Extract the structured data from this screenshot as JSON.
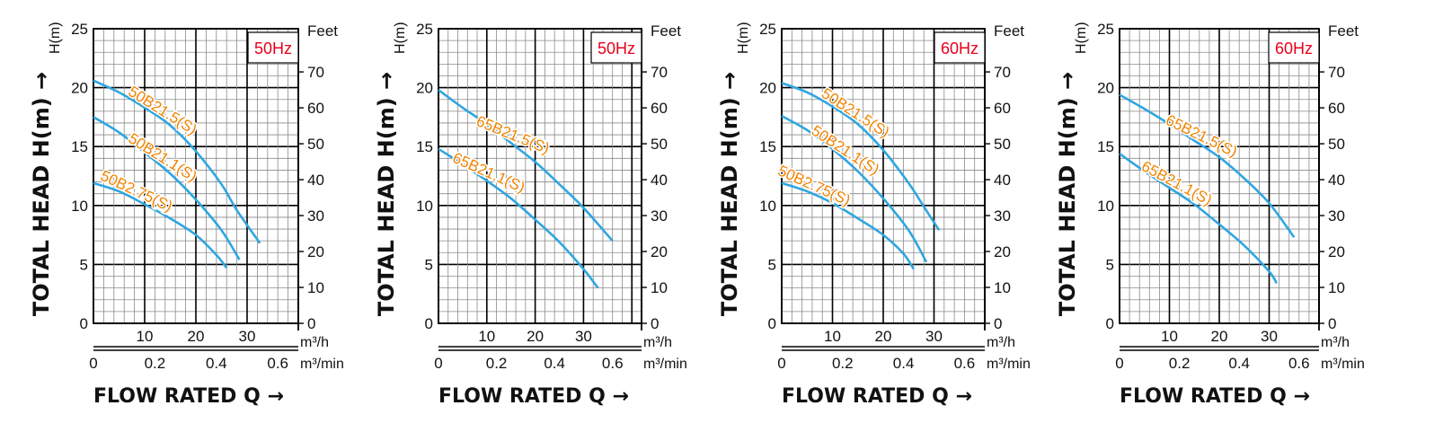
{
  "chart_data": [
    {
      "type": "line",
      "frequency": "50Hz",
      "y_title": "TOTAL HEAD H(m) →",
      "y_unit": "H(m)",
      "y2_unit": "Feet",
      "x_title": "FLOW RATED Q →",
      "x_unit_1": "m³/h",
      "x_unit_2": "m³/min",
      "xlim": [
        0,
        40
      ],
      "ylim": [
        0,
        25
      ],
      "x_ticks": [
        "10",
        "20",
        "30"
      ],
      "x2_ticks": [
        "0",
        "0.2",
        "0.4",
        "0.6"
      ],
      "y_ticks": [
        "0",
        "5",
        "10",
        "15",
        "20",
        "25"
      ],
      "y2_ticks": [
        "0",
        "10",
        "20",
        "30",
        "40",
        "50",
        "60",
        "70"
      ],
      "series": [
        {
          "name": "50B21.5(S)",
          "x": [
            0,
            5,
            10,
            15,
            20,
            25,
            28,
            32.5
          ],
          "y": [
            20.6,
            19.6,
            18.3,
            16.8,
            14.6,
            11.8,
            9.6,
            6.8
          ]
        },
        {
          "name": "50B21.1(S)",
          "x": [
            0,
            5,
            10,
            15,
            20,
            25,
            28.5
          ],
          "y": [
            17.5,
            16.2,
            14.5,
            12.7,
            10.5,
            7.9,
            5.4
          ]
        },
        {
          "name": "50B2.75(S)",
          "x": [
            0,
            5,
            10,
            15,
            20,
            24,
            26
          ],
          "y": [
            11.9,
            11.2,
            10.1,
            8.9,
            7.5,
            5.8,
            4.7
          ]
        }
      ]
    },
    {
      "type": "line",
      "frequency": "50Hz",
      "y_title": "TOTAL HEAD H(m) →",
      "y_unit": "H(m)",
      "y2_unit": "Feet",
      "x_title": "FLOW RATED Q →",
      "x_unit_1": "m³/h",
      "x_unit_2": "m³/min",
      "xlim": [
        0,
        42
      ],
      "ylim": [
        0,
        25
      ],
      "x_ticks": [
        "10",
        "20",
        "30"
      ],
      "x2_ticks": [
        "0",
        "0.2",
        "0.4",
        "0.6"
      ],
      "y_ticks": [
        "0",
        "5",
        "10",
        "15",
        "20",
        "25"
      ],
      "y2_ticks": [
        "0",
        "10",
        "20",
        "30",
        "40",
        "50",
        "60",
        "70"
      ],
      "series": [
        {
          "name": "65B21.5(S)",
          "x": [
            0,
            5,
            10,
            15,
            20,
            25,
            30,
            36
          ],
          "y": [
            19.8,
            18.3,
            16.9,
            15.3,
            13.7,
            11.8,
            9.8,
            7.0
          ]
        },
        {
          "name": "65B21.1(S)",
          "x": [
            0,
            5,
            10,
            15,
            20,
            25,
            30,
            33
          ],
          "y": [
            14.8,
            13.5,
            12.1,
            10.6,
            8.8,
            6.9,
            4.6,
            3.0
          ]
        }
      ]
    },
    {
      "type": "line",
      "frequency": "60Hz",
      "y_title": "TOTAL HEAD H(m) →",
      "y_unit": "H(m)",
      "y2_unit": "Feet",
      "x_title": "FLOW RATED Q →",
      "x_unit_1": "m³/h",
      "x_unit_2": "m³/min",
      "xlim": [
        0,
        40
      ],
      "ylim": [
        0,
        25
      ],
      "x_ticks": [
        "10",
        "20",
        "30"
      ],
      "x2_ticks": [
        "0",
        "0.2",
        "0.4",
        "0.6"
      ],
      "y_ticks": [
        "0",
        "5",
        "10",
        "15",
        "20",
        "25"
      ],
      "y2_ticks": [
        "0",
        "10",
        "20",
        "30",
        "40",
        "50",
        "60",
        "70"
      ],
      "series": [
        {
          "name": "50B21.5(S)",
          "x": [
            0,
            5,
            10,
            15,
            20,
            25,
            28,
            31
          ],
          "y": [
            20.4,
            19.6,
            18.4,
            16.9,
            14.7,
            11.9,
            9.9,
            7.9
          ]
        },
        {
          "name": "50B21.1(S)",
          "x": [
            0,
            5,
            10,
            15,
            20,
            25,
            28.5
          ],
          "y": [
            17.6,
            16.4,
            14.8,
            12.9,
            10.6,
            7.9,
            5.2
          ]
        },
        {
          "name": "50B2.75(S)",
          "x": [
            0,
            5,
            10,
            15,
            20,
            24,
            26
          ],
          "y": [
            11.9,
            11.2,
            10.2,
            8.9,
            7.5,
            5.9,
            4.6
          ]
        }
      ]
    },
    {
      "type": "line",
      "frequency": "60Hz",
      "y_title": "TOTAL HEAD H(m) →",
      "y_unit": "H(m)",
      "y2_unit": "Feet",
      "x_title": "FLOW RATED Q →",
      "x_unit_1": "m³/h",
      "x_unit_2": "m³/min",
      "xlim": [
        0,
        40
      ],
      "ylim": [
        0,
        25
      ],
      "x_ticks": [
        "10",
        "20",
        "30"
      ],
      "x2_ticks": [
        "0",
        "0.2",
        "0.4",
        "0.6"
      ],
      "y_ticks": [
        "0",
        "5",
        "10",
        "15",
        "20",
        "25"
      ],
      "y2_ticks": [
        "0",
        "10",
        "20",
        "30",
        "40",
        "50",
        "60",
        "70"
      ],
      "series": [
        {
          "name": "65B21.5(S)",
          "x": [
            0,
            5,
            10,
            15,
            20,
            25,
            30,
            35
          ],
          "y": [
            19.4,
            18.2,
            16.9,
            15.5,
            14.1,
            12.3,
            10.2,
            7.3
          ]
        },
        {
          "name": "65B21.1(S)",
          "x": [
            0,
            5,
            10,
            15,
            20,
            25,
            30,
            31.5
          ],
          "y": [
            14.4,
            12.9,
            11.5,
            10.1,
            8.4,
            6.6,
            4.4,
            3.4
          ]
        }
      ]
    }
  ],
  "colors": {
    "curve": "#2fa6e0",
    "curve_label": "#f08300",
    "frequency_label": "#e8001c",
    "grid": "#000000"
  }
}
